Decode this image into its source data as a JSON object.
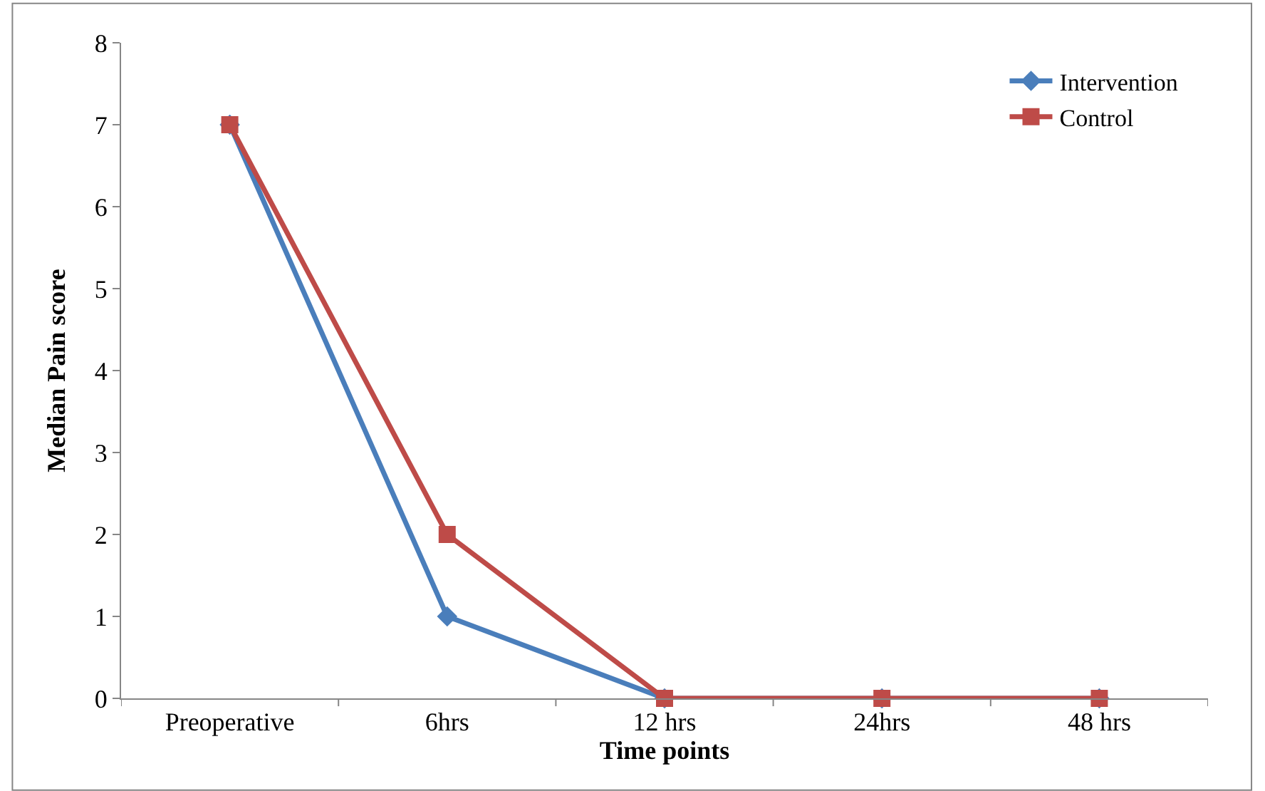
{
  "chart_data": {
    "type": "line",
    "xlabel": "Time points",
    "ylabel": "Median Pain score",
    "categories": [
      "Preoperative",
      "6hrs",
      "12 hrs",
      "24hrs",
      "48 hrs"
    ],
    "series": [
      {
        "name": "Intervention",
        "color": "#4a7ebb",
        "marker": "diamond",
        "values": [
          7,
          1,
          0,
          0,
          0
        ]
      },
      {
        "name": "Control",
        "color": "#be4b48",
        "marker": "square",
        "values": [
          7,
          2,
          0,
          0,
          0
        ]
      }
    ],
    "ylim": [
      0,
      8
    ],
    "yticks": [
      0,
      1,
      2,
      3,
      4,
      5,
      6,
      7,
      8
    ],
    "legend": "top right",
    "line_style": "solid"
  }
}
